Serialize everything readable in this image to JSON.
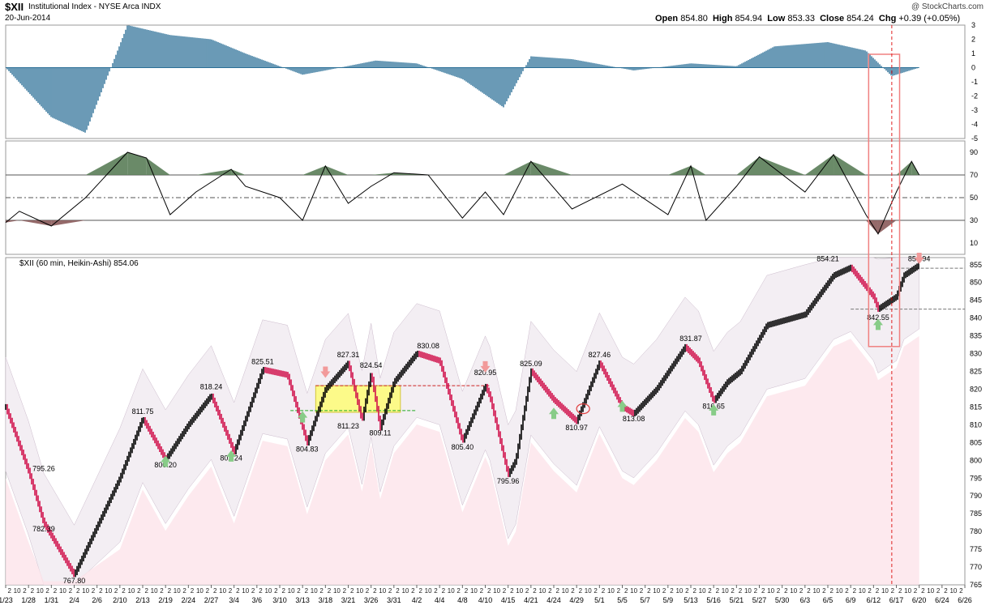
{
  "header": {
    "ticker": "$XII",
    "name": "Institutional Index - NYSE Arca INDX",
    "date": "20-Jun-2014",
    "watermark": "@ StockCharts.com",
    "open_label": "Open",
    "open": "854.80",
    "high_label": "High",
    "high": "854.94",
    "low_label": "Low",
    "low": "853.33",
    "close_label": "Close",
    "close": "854.24",
    "chg_label": "Chg",
    "chg": "+0.39 (+0.05%)"
  },
  "colors": {
    "macd": "#2b6f96",
    "rsi_line": "#000000",
    "rsi_over": "#5a7d58",
    "rsi_under": "#8a5a5a",
    "up_candle": "#000000",
    "down_candle": "#d0104a",
    "band_fill": "#f3eef3",
    "lower_fill": "#fde4ea",
    "highlight_box": "#ffff66",
    "support": "#22aa22",
    "resistance": "#cc2222",
    "marker_up": "#88cc88",
    "marker_down": "#f29a9a"
  },
  "chart_data": [
    {
      "type": "area",
      "panel": "histogram-oscillator",
      "ylim": [
        -5,
        3
      ],
      "yticks": [
        "3",
        "2",
        "1",
        "0",
        "-1",
        "-2",
        "-3",
        "-4",
        "-5"
      ],
      "x": [
        "1/23",
        "1/31",
        "2/5",
        "2/11",
        "2/20",
        "2/27",
        "3/5",
        "3/13",
        "3/18",
        "3/27",
        "4/2",
        "4/8",
        "4/14",
        "4/21",
        "4/28",
        "5/6",
        "5/13",
        "5/21",
        "5/29",
        "6/5",
        "6/11",
        "6/16",
        "6/20"
      ],
      "values": [
        0,
        -3.5,
        -4.6,
        3,
        2.3,
        2,
        1,
        -0.5,
        -0.2,
        0.5,
        0.3,
        -0.8,
        -2.8,
        0.8,
        0.6,
        -0.2,
        0.3,
        0.1,
        1.5,
        1.8,
        1.2,
        -0.6,
        0
      ]
    },
    {
      "type": "line",
      "panel": "rsi",
      "ylim": [
        0,
        100
      ],
      "yticks": [
        "90",
        "70",
        "50",
        "30",
        "10"
      ],
      "reference_lines": [
        30,
        50,
        70
      ],
      "x": [
        "1/23",
        "1/26",
        "1/31",
        "2/5",
        "2/11",
        "2/14",
        "2/20",
        "2/25",
        "3/3",
        "3/5",
        "3/10",
        "3/13",
        "3/18",
        "3/21",
        "3/26",
        "3/31",
        "4/3",
        "4/8",
        "4/10",
        "4/14",
        "4/21",
        "4/28",
        "5/5",
        "5/9",
        "5/13",
        "5/15",
        "5/21",
        "5/27",
        "6/3",
        "6/6",
        "6/11",
        "6/13",
        "6/17",
        "6/19",
        "6/20"
      ],
      "values": [
        28,
        38,
        25,
        50,
        90,
        85,
        35,
        55,
        75,
        60,
        50,
        30,
        78,
        45,
        60,
        72,
        70,
        32,
        55,
        35,
        82,
        40,
        62,
        35,
        78,
        30,
        60,
        86,
        55,
        88,
        35,
        18,
        55,
        82,
        70
      ]
    },
    {
      "type": "line",
      "panel": "price",
      "title": "$XII (60 min, Heikin-Ashi) 854.06",
      "ylim": [
        765,
        857
      ],
      "yticks": [
        "855",
        "850",
        "845",
        "840",
        "835",
        "830",
        "825",
        "820",
        "815",
        "810",
        "805",
        "800",
        "795",
        "790",
        "785",
        "780",
        "775",
        "770",
        "765"
      ],
      "x_labels": [
        "1/23",
        "1/28",
        "1/31",
        "2/4",
        "2/6",
        "2/10",
        "2/13",
        "2/19",
        "2/24",
        "2/27",
        "3/4",
        "3/6",
        "3/10",
        "3/13",
        "3/18",
        "3/21",
        "3/26",
        "3/31",
        "4/2",
        "4/4",
        "4/8",
        "4/10",
        "4/15",
        "4/21",
        "4/24",
        "4/29",
        "5/1",
        "5/5",
        "5/7",
        "5/9",
        "5/13",
        "5/16",
        "5/21",
        "5/27",
        "5/30",
        "6/3",
        "6/5",
        "6/9",
        "6/12",
        "6/17",
        "6/20",
        "6/24",
        "6/26"
      ],
      "x": [
        "1/23",
        "1/28",
        "1/30",
        "2/4",
        "2/10",
        "2/13",
        "2/19",
        "2/24",
        "2/27",
        "3/4",
        "3/7",
        "3/11",
        "3/14",
        "3/18",
        "3/21",
        "3/24",
        "3/26",
        "3/28",
        "3/31",
        "4/2",
        "4/4",
        "4/8",
        "4/10",
        "4/11",
        "4/15",
        "4/17",
        "4/21",
        "4/24",
        "4/29",
        "5/1",
        "5/5",
        "5/6",
        "5/8",
        "5/12",
        "5/14",
        "5/16",
        "5/19",
        "5/22",
        "5/28",
        "6/3",
        "6/6",
        "6/9",
        "6/12",
        "6/13",
        "6/17",
        "6/18",
        "6/20"
      ],
      "values": [
        815,
        797,
        782.39,
        767.8,
        795,
        811.75,
        800.2,
        810,
        818.24,
        802.24,
        825.51,
        824,
        804.83,
        820,
        827.31,
        811.23,
        824.54,
        809.11,
        822,
        830.08,
        828,
        805.4,
        820.95,
        818,
        795.96,
        800,
        825.09,
        817,
        810.97,
        827.46,
        815,
        813.08,
        820,
        831.87,
        828,
        816.65,
        822,
        825,
        838,
        841,
        852,
        854.21,
        846,
        842.55,
        846,
        852,
        854.94
      ],
      "annotations": [
        "854.21",
        "854.94",
        "842.55",
        "831.87",
        "827.46",
        "825.09",
        "830.08",
        "820.95",
        "827.31",
        "824.54",
        "825.51",
        "818.24",
        "811.75",
        "811.23",
        "809.11",
        "804.83",
        "805.40",
        "802.24",
        "800.20",
        "795.26",
        "795.96",
        "782.39",
        "767.80",
        "810.97",
        "813.08",
        "816.65"
      ]
    }
  ],
  "xaxis": {
    "hour_ticks": [
      "2",
      "10",
      "2"
    ]
  }
}
